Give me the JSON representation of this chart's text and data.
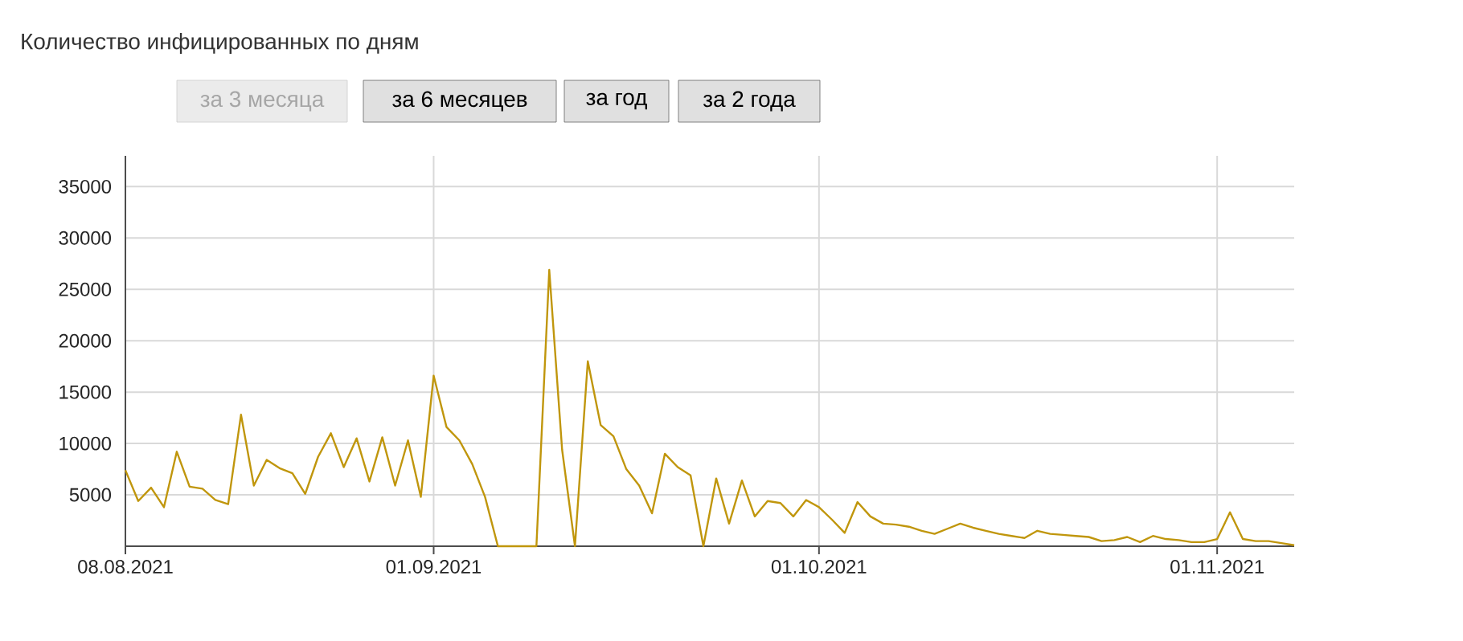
{
  "chart_data": {
    "type": "line",
    "title": "Количество инфицированных по дням",
    "annotations": [
      "за 3 месяца",
      "за 6 месяцев",
      "за год",
      "за 2 года"
    ],
    "x": [
      "2021-08-08",
      "2021-08-09",
      "2021-08-10",
      "2021-08-11",
      "2021-08-12",
      "2021-08-13",
      "2021-08-14",
      "2021-08-15",
      "2021-08-16",
      "2021-08-17",
      "2021-08-18",
      "2021-08-19",
      "2021-08-20",
      "2021-08-21",
      "2021-08-22",
      "2021-08-23",
      "2021-08-24",
      "2021-08-25",
      "2021-08-26",
      "2021-08-27",
      "2021-08-28",
      "2021-08-29",
      "2021-08-30",
      "2021-08-31",
      "2021-09-01",
      "2021-09-02",
      "2021-09-03",
      "2021-09-04",
      "2021-09-05",
      "2021-09-06",
      "2021-09-07",
      "2021-09-08",
      "2021-09-09",
      "2021-09-10",
      "2021-09-11",
      "2021-09-12",
      "2021-09-13",
      "2021-09-14",
      "2021-09-15",
      "2021-09-16",
      "2021-09-17",
      "2021-09-18",
      "2021-09-19",
      "2021-09-20",
      "2021-09-21",
      "2021-09-22",
      "2021-09-23",
      "2021-09-24",
      "2021-09-25",
      "2021-09-26",
      "2021-09-27",
      "2021-09-28",
      "2021-09-29",
      "2021-09-30",
      "2021-10-01",
      "2021-10-02",
      "2021-10-03",
      "2021-10-04",
      "2021-10-05",
      "2021-10-06",
      "2021-10-07",
      "2021-10-08",
      "2021-10-09",
      "2021-10-10",
      "2021-10-11",
      "2021-10-12",
      "2021-10-13",
      "2021-10-14",
      "2021-10-15",
      "2021-10-16",
      "2021-10-17",
      "2021-10-18",
      "2021-10-19",
      "2021-10-20",
      "2021-10-21",
      "2021-10-22",
      "2021-10-23",
      "2021-10-24",
      "2021-10-25",
      "2021-10-26",
      "2021-10-27",
      "2021-10-28",
      "2021-10-29",
      "2021-10-30",
      "2021-10-31",
      "2021-11-01",
      "2021-11-02",
      "2021-11-03",
      "2021-11-04",
      "2021-11-05",
      "2021-11-06",
      "2021-11-07"
    ],
    "values": [
      7400,
      4400,
      5700,
      3800,
      9200,
      5800,
      5600,
      4500,
      4100,
      12800,
      5900,
      8400,
      7600,
      7100,
      5100,
      8700,
      11000,
      7700,
      10500,
      6300,
      10600,
      5900,
      10300,
      4800,
      16600,
      11600,
      10300,
      8000,
      4800,
      0,
      0,
      0,
      0,
      26900,
      9400,
      0,
      18000,
      11800,
      10700,
      7500,
      5900,
      3200,
      9000,
      7700,
      6900,
      0,
      6600,
      2200,
      6400,
      2900,
      4400,
      4200,
      2900,
      4500,
      3800,
      2600,
      1300,
      4300,
      2900,
      2200,
      2100,
      1900,
      1500,
      1200,
      1700,
      2200,
      1800,
      1500,
      1200,
      1000,
      800,
      1500,
      1200,
      1100,
      1000,
      900,
      500,
      600,
      900,
      400,
      1000,
      700,
      600,
      400,
      400,
      700,
      3300,
      700,
      500,
      500,
      300,
      100
    ],
    "color": "#c0960c",
    "xlim": [
      "2021-08-08",
      "2021-11-07"
    ],
    "xticks": [
      {
        "value": "2021-08-08",
        "label": "08.08.2021"
      },
      {
        "value": "2021-09-01",
        "label": "01.09.2021"
      },
      {
        "value": "2021-10-01",
        "label": "01.10.2021"
      },
      {
        "value": "2021-11-01",
        "label": "01.11.2021"
      }
    ],
    "ylim": [
      0,
      38000
    ],
    "yticks": [
      5000,
      10000,
      15000,
      20000,
      25000,
      30000,
      35000
    ],
    "grid": true
  }
}
